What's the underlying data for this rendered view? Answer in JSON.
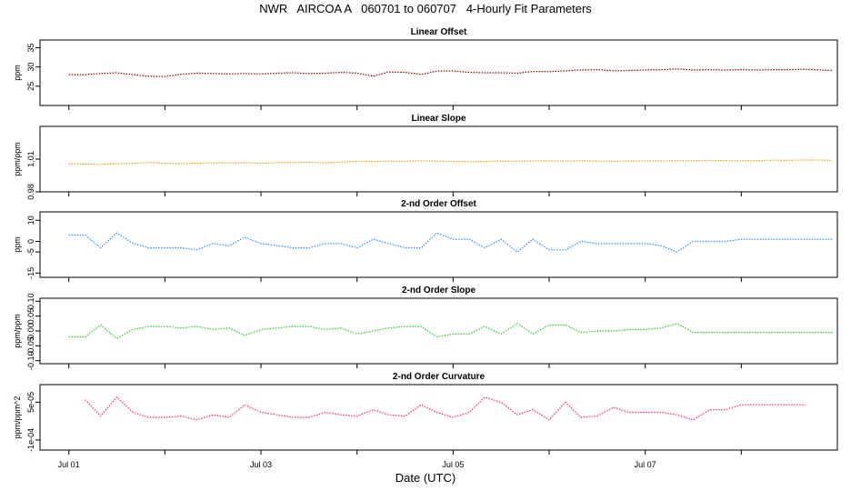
{
  "title": "NWR   AIRCOA A   060701 to 060707   4-Hourly Fit Parameters",
  "xlabel": "Date (UTC)",
  "chart_data": [
    {
      "type": "line",
      "title": "Linear Offset",
      "ylabel": "ppm",
      "ylim": [
        20,
        37
      ],
      "yticks": [
        25,
        30,
        35
      ],
      "yticklabels": [
        "25",
        "30",
        "35"
      ],
      "color": "#8b0000",
      "x": [
        0.0,
        0.17,
        0.33,
        0.5,
        0.67,
        0.83,
        1.0,
        1.17,
        1.33,
        1.5,
        1.67,
        1.83,
        2.0,
        2.17,
        2.33,
        2.5,
        2.67,
        2.83,
        3.0,
        3.17,
        3.33,
        3.5,
        3.67,
        3.83,
        4.0,
        4.17,
        4.33,
        4.5,
        4.67,
        4.83,
        5.0,
        5.17,
        5.33,
        5.5,
        5.67,
        5.83,
        6.0,
        6.17,
        6.33,
        6.5,
        6.67,
        6.83,
        7.0,
        7.17,
        7.33,
        7.5,
        7.67,
        7.83,
        7.95
      ],
      "values": [
        28.0,
        28.0,
        28.3,
        28.5,
        28.0,
        27.6,
        27.5,
        28.1,
        28.4,
        28.3,
        28.2,
        28.3,
        28.2,
        28.4,
        28.5,
        28.3,
        28.4,
        28.6,
        28.4,
        27.6,
        28.7,
        28.6,
        28.1,
        28.9,
        29.0,
        28.6,
        28.5,
        28.5,
        28.4,
        28.8,
        28.8,
        29.0,
        29.2,
        29.3,
        29.0,
        29.1,
        29.2,
        29.3,
        29.5,
        29.2,
        29.3,
        29.2,
        29.3,
        29.2,
        29.3,
        29.3,
        29.4,
        29.2,
        29.1
      ]
    },
    {
      "type": "line",
      "title": "Linear Slope",
      "ylabel": "ppm/ppm",
      "ylim": [
        0.98,
        1.04
      ],
      "yticks": [
        0.98,
        1.01
      ],
      "yticklabels": [
        "0.98",
        "1.01"
      ],
      "color": "#e8a000",
      "x": [
        0.0,
        0.17,
        0.33,
        0.5,
        0.67,
        0.83,
        1.0,
        1.17,
        1.33,
        1.5,
        1.67,
        1.83,
        2.0,
        2.17,
        2.33,
        2.5,
        2.67,
        2.83,
        3.0,
        3.17,
        3.33,
        3.5,
        3.67,
        3.83,
        4.0,
        4.17,
        4.33,
        4.5,
        4.67,
        4.83,
        5.0,
        5.17,
        5.33,
        5.5,
        5.67,
        5.83,
        6.0,
        6.17,
        6.33,
        6.5,
        6.67,
        6.83,
        7.0,
        7.17,
        7.33,
        7.5,
        7.67,
        7.83,
        7.95
      ],
      "values": [
        1.0055,
        1.0055,
        1.0052,
        1.0058,
        1.0062,
        1.0068,
        1.0062,
        1.006,
        1.0062,
        1.0065,
        1.0064,
        1.0066,
        1.0062,
        1.0068,
        1.007,
        1.0072,
        1.0066,
        1.0072,
        1.008,
        1.0078,
        1.0081,
        1.0079,
        1.0085,
        1.0082,
        1.0078,
        1.0076,
        1.0078,
        1.0082,
        1.008,
        1.0084,
        1.0083,
        1.0082,
        1.0085,
        1.0082,
        1.008,
        1.0082,
        1.0084,
        1.0083,
        1.0085,
        1.0086,
        1.0088,
        1.0086,
        1.0085,
        1.0087,
        1.009,
        1.0089,
        1.0092,
        1.0092,
        1.0088
      ]
    },
    {
      "type": "line",
      "title": "2-nd Order Offset",
      "ylabel": "ppm",
      "ylim": [
        -17,
        14
      ],
      "yticks": [
        -15,
        -5,
        0,
        10
      ],
      "yticklabels": [
        "-15",
        "-5",
        "0",
        "10"
      ],
      "color": "#1e90ff",
      "x": [
        0.0,
        0.17,
        0.33,
        0.5,
        0.67,
        0.83,
        1.0,
        1.17,
        1.33,
        1.5,
        1.67,
        1.83,
        2.0,
        2.17,
        2.33,
        2.5,
        2.67,
        2.83,
        3.0,
        3.17,
        3.33,
        3.5,
        3.67,
        3.83,
        4.0,
        4.17,
        4.33,
        4.5,
        4.67,
        4.83,
        5.0,
        5.17,
        5.33,
        5.5,
        5.67,
        5.83,
        6.0,
        6.17,
        6.33,
        6.5,
        6.67,
        6.83,
        7.0,
        7.17,
        7.33,
        7.5,
        7.67,
        7.83,
        7.95
      ],
      "values": [
        3,
        3,
        -3,
        4,
        -1,
        -3,
        -3,
        -3,
        -4,
        -1,
        -2,
        2,
        -1,
        -2,
        -3,
        -3,
        -1,
        -1,
        -3,
        1,
        -1,
        -3,
        -3,
        4,
        1,
        1,
        -3,
        1,
        -5,
        1,
        -4,
        -4,
        0,
        -1,
        -1,
        -1,
        -1,
        -2,
        -5,
        0,
        0,
        0,
        1,
        1,
        1,
        1,
        1,
        1,
        1
      ]
    },
    {
      "type": "line",
      "title": "2-nd Order Slope",
      "ylabel": "ppm/ppm",
      "ylim": [
        -0.11,
        0.11
      ],
      "yticks": [
        -0.1,
        -0.05,
        0.0,
        0.05,
        0.1
      ],
      "yticklabels": [
        "-0.10",
        "-0.05",
        "0.00",
        "0.05",
        "0.10"
      ],
      "color": "#22cc22",
      "x": [
        0.0,
        0.17,
        0.33,
        0.5,
        0.67,
        0.83,
        1.0,
        1.17,
        1.33,
        1.5,
        1.67,
        1.83,
        2.0,
        2.17,
        2.33,
        2.5,
        2.67,
        2.83,
        3.0,
        3.17,
        3.33,
        3.5,
        3.67,
        3.83,
        4.0,
        4.17,
        4.33,
        4.5,
        4.67,
        4.83,
        5.0,
        5.17,
        5.33,
        5.5,
        5.67,
        5.83,
        6.0,
        6.17,
        6.33,
        6.5,
        6.67,
        6.83,
        7.0,
        7.17,
        7.33,
        7.5,
        7.67,
        7.83,
        7.95
      ],
      "values": [
        -0.02,
        -0.02,
        0.02,
        -0.025,
        0.005,
        0.015,
        0.015,
        0.01,
        0.015,
        0.005,
        0.01,
        -0.015,
        0.005,
        0.01,
        0.015,
        0.015,
        0.005,
        0.01,
        -0.01,
        0.0,
        0.01,
        0.015,
        0.015,
        -0.02,
        -0.01,
        -0.01,
        0.015,
        -0.01,
        0.025,
        -0.01,
        0.02,
        0.02,
        -0.005,
        0.0,
        0.0,
        0.005,
        0.005,
        0.01,
        0.025,
        -0.005,
        -0.005,
        -0.005,
        -0.005,
        -0.005,
        -0.005,
        -0.005,
        -0.005,
        -0.005,
        -0.005
      ]
    },
    {
      "type": "line",
      "title": "2-nd Order Curvature",
      "ylabel": "ppm/ppm^2",
      "ylim": [
        -0.00014,
        0.00012
      ],
      "yticks": [
        -0.0001,
        5e-05
      ],
      "yticklabels": [
        "-1e-04",
        "5e-05"
      ],
      "color": "#ff2255",
      "x": [
        0.17,
        0.33,
        0.5,
        0.67,
        0.83,
        1.0,
        1.17,
        1.33,
        1.5,
        1.67,
        1.83,
        2.0,
        2.17,
        2.33,
        2.5,
        2.67,
        2.83,
        3.0,
        3.17,
        3.33,
        3.5,
        3.67,
        3.83,
        4.0,
        4.17,
        4.33,
        4.5,
        4.67,
        4.83,
        5.0,
        5.17,
        5.33,
        5.5,
        5.67,
        5.83,
        6.0,
        6.17,
        6.33,
        6.5,
        6.67,
        6.83,
        7.0,
        7.17,
        7.33,
        7.5,
        7.67
      ],
      "values": [
        6e-05,
        -5e-06,
        7e-05,
        1e-05,
        -1e-05,
        -1e-05,
        -5e-06,
        -2e-05,
        0.0,
        -1e-05,
        4e-05,
        1e-05,
        0.0,
        -1e-05,
        -1e-05,
        1e-05,
        0.0,
        -5e-06,
        2e-05,
        0.0,
        -5e-06,
        4e-05,
        1e-05,
        -1e-05,
        1e-05,
        7e-05,
        5e-05,
        0.0,
        2e-05,
        -2e-05,
        5e-05,
        -1e-05,
        -5e-06,
        3e-05,
        1e-05,
        1e-05,
        1e-05,
        0.0,
        -2e-05,
        2e-05,
        2e-05,
        4e-05,
        4e-05,
        4e-05,
        4e-05,
        4e-05
      ]
    }
  ],
  "x_axis": {
    "range": [
      -0.3,
      8.0
    ],
    "ticks": [
      0,
      1,
      2,
      3,
      4,
      5,
      6,
      7
    ],
    "labeled_ticks": [
      0,
      2,
      4,
      6
    ],
    "labels": [
      "Jul 01",
      "Jul 03",
      "Jul 05",
      "Jul 07"
    ]
  }
}
